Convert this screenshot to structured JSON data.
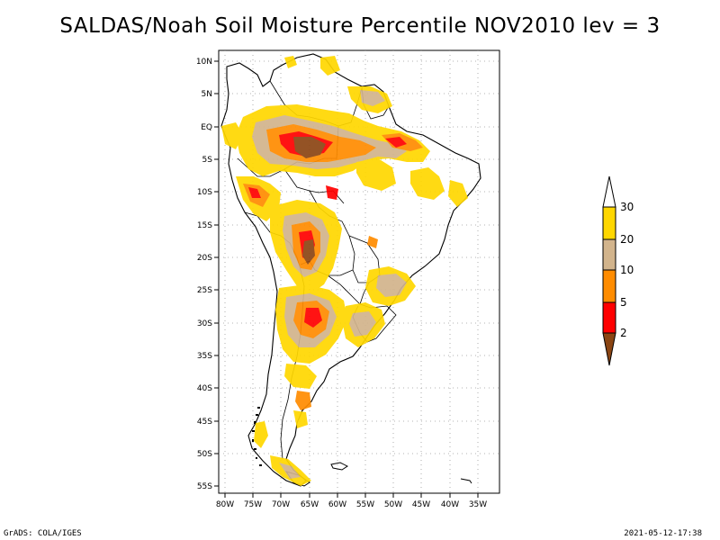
{
  "title": "SALDAS/Noah Soil Moisture Percentile NOV2010 lev = 3",
  "map": {
    "lat_labels": [
      "10N",
      "5N",
      "EQ",
      "5S",
      "10S",
      "15S",
      "20S",
      "25S",
      "30S",
      "35S",
      "40S",
      "45S",
      "50S",
      "55S"
    ],
    "lon_labels": [
      "80W",
      "75W",
      "70W",
      "65W",
      "60W",
      "55W",
      "50W",
      "45W",
      "40W",
      "35W"
    ]
  },
  "colorbar": {
    "levels": [
      "2",
      "5",
      "10",
      "20",
      "30"
    ],
    "colors": {
      "below_2": "#8B4513",
      "2_5": "#FF0000",
      "5_10": "#FF8C00",
      "10_20": "#D2B48C",
      "20_30": "#FFD700",
      "above_30": "#FFFFFF"
    }
  },
  "footer": {
    "left": "GrADS: COLA/IGES",
    "right": "2021-05-12-17:38"
  }
}
